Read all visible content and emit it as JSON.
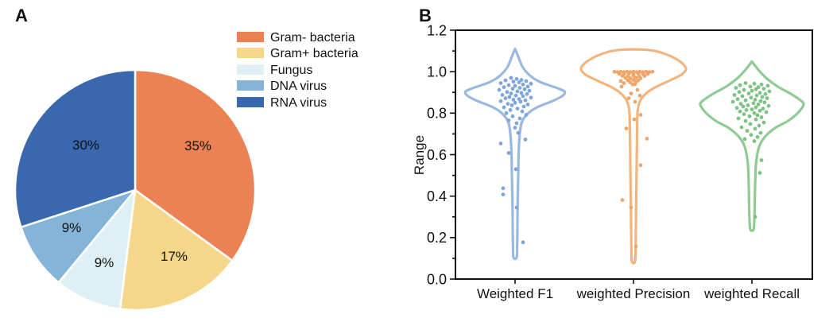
{
  "figure": {
    "panels": [
      {
        "label": "A"
      },
      {
        "label": "B"
      }
    ]
  },
  "chart_data": [
    {
      "type": "pie",
      "panel": "A",
      "labels": [
        "Gram- bacteria",
        "Gram+ bacteria",
        "Fungus",
        "DNA virus",
        "RNA virus"
      ],
      "values": [
        35,
        17,
        9,
        9,
        30
      ],
      "value_labels": [
        "35%",
        "17%",
        "9%",
        "9%",
        "30%"
      ],
      "colors": [
        "#EC8254",
        "#F5D78A",
        "#DFEFF6",
        "#84B4D8",
        "#3A68AE"
      ],
      "slice_border_color": "#FFFFFF",
      "start_angle": "top",
      "direction": "clockwise",
      "legend_position": "upper-right"
    },
    {
      "type": "violin",
      "panel": "B",
      "ylabel": "Range",
      "ylim": [
        0,
        1.2
      ],
      "ytick_labels": [
        "0.0",
        "0.2",
        "0.4",
        "0.6",
        "0.8",
        "1.0",
        "1.2"
      ],
      "minor_tick_step": 0.1,
      "categories": [
        "Weighted F1",
        "weighted Precision",
        "weighted Recall"
      ],
      "series": [
        {
          "name": "Weighted F1",
          "line_color": "#9BB8E0",
          "point_color": "#7EA6D8",
          "min": 0.1,
          "max": 1.1,
          "peak_density_at": 0.91,
          "profile": [
            [
              1.104,
              0.01
            ],
            [
              1.06,
              0.08
            ],
            [
              1.02,
              0.15
            ],
            [
              0.98,
              0.29
            ],
            [
              0.95,
              0.48
            ],
            [
              0.925,
              0.76
            ],
            [
              0.905,
              0.94
            ],
            [
              0.885,
              0.91
            ],
            [
              0.86,
              0.73
            ],
            [
              0.835,
              0.48
            ],
            [
              0.81,
              0.3
            ],
            [
              0.78,
              0.18
            ],
            [
              0.75,
              0.12
            ],
            [
              0.7,
              0.09
            ],
            [
              0.62,
              0.07
            ],
            [
              0.5,
              0.06
            ],
            [
              0.38,
              0.05
            ],
            [
              0.25,
              0.045
            ],
            [
              0.16,
              0.04
            ],
            [
              0.104,
              0.03
            ]
          ],
          "points": [
            [
              -5,
              0.97
            ],
            [
              2,
              0.965
            ],
            [
              8,
              0.96
            ],
            [
              -12,
              0.958
            ],
            [
              14,
              0.955
            ],
            [
              -2,
              0.952
            ],
            [
              5,
              0.948
            ],
            [
              -18,
              0.945
            ],
            [
              20,
              0.942
            ],
            [
              10,
              0.938
            ],
            [
              -8,
              0.935
            ],
            [
              0,
              0.932
            ],
            [
              16,
              0.928
            ],
            [
              -14,
              0.925
            ],
            [
              6,
              0.922
            ],
            [
              -3,
              0.918
            ],
            [
              12,
              0.915
            ],
            [
              -20,
              0.912
            ],
            [
              18,
              0.908
            ],
            [
              3,
              0.905
            ],
            [
              -10,
              0.902
            ],
            [
              8,
              0.898
            ],
            [
              -5,
              0.895
            ],
            [
              15,
              0.892
            ],
            [
              -16,
              0.888
            ],
            [
              1,
              0.885
            ],
            [
              10,
              0.882
            ],
            [
              -7,
              0.878
            ],
            [
              20,
              0.875
            ],
            [
              -12,
              0.872
            ],
            [
              5,
              0.868
            ],
            [
              -2,
              0.865
            ],
            [
              13,
              0.862
            ],
            [
              -18,
              0.858
            ],
            [
              7,
              0.855
            ],
            [
              0,
              0.85
            ],
            [
              -9,
              0.845
            ],
            [
              16,
              0.842
            ],
            [
              -4,
              0.838
            ],
            [
              11,
              0.832
            ],
            [
              -14,
              0.828
            ],
            [
              3,
              0.822
            ],
            [
              -6,
              0.815
            ],
            [
              9,
              0.808
            ],
            [
              -11,
              0.8
            ],
            [
              14,
              0.792
            ],
            [
              -3,
              0.785
            ],
            [
              6,
              0.775
            ],
            [
              -8,
              0.765
            ],
            [
              2,
              0.752
            ],
            [
              0,
              0.73
            ],
            [
              4,
              0.705
            ],
            [
              13,
              0.673
            ],
            [
              -18,
              0.654
            ],
            [
              -8,
              0.608
            ],
            [
              1,
              0.53
            ],
            [
              -15,
              0.438
            ],
            [
              -15,
              0.408
            ],
            [
              2,
              0.345
            ],
            [
              10,
              0.177
            ]
          ]
        },
        {
          "name": "weighted Precision",
          "line_color": "#F2B57F",
          "point_color": "#EFA668",
          "min": 0.09,
          "max": 1.1,
          "peak_density_at": 1.01,
          "profile": [
            [
              1.105,
              0.27
            ],
            [
              1.085,
              0.61
            ],
            [
              1.05,
              0.88
            ],
            [
              1.015,
              1.0
            ],
            [
              0.985,
              0.91
            ],
            [
              0.955,
              0.67
            ],
            [
              0.925,
              0.42
            ],
            [
              0.9,
              0.26
            ],
            [
              0.87,
              0.15
            ],
            [
              0.84,
              0.1
            ],
            [
              0.8,
              0.075
            ],
            [
              0.7,
              0.068
            ],
            [
              0.55,
              0.06
            ],
            [
              0.4,
              0.053
            ],
            [
              0.25,
              0.045
            ],
            [
              0.15,
              0.04
            ],
            [
              0.085,
              0.03
            ]
          ],
          "points": [
            [
              -24,
              1.0
            ],
            [
              -20,
              0.998
            ],
            [
              -16,
              1.0
            ],
            [
              -12,
              0.998
            ],
            [
              -8,
              1.0
            ],
            [
              -4,
              0.998
            ],
            [
              0,
              1.0
            ],
            [
              4,
              0.998
            ],
            [
              8,
              1.0
            ],
            [
              12,
              0.998
            ],
            [
              16,
              1.0
            ],
            [
              20,
              0.998
            ],
            [
              24,
              1.0
            ],
            [
              -18,
              0.99
            ],
            [
              -12,
              0.988
            ],
            [
              -6,
              0.99
            ],
            [
              0,
              0.988
            ],
            [
              6,
              0.99
            ],
            [
              12,
              0.988
            ],
            [
              18,
              0.99
            ],
            [
              -14,
              0.98
            ],
            [
              -7,
              0.978
            ],
            [
              0,
              0.98
            ],
            [
              7,
              0.978
            ],
            [
              14,
              0.98
            ],
            [
              -10,
              0.97
            ],
            [
              -4,
              0.968
            ],
            [
              3,
              0.97
            ],
            [
              9,
              0.968
            ],
            [
              -16,
              0.955
            ],
            [
              -7,
              0.958
            ],
            [
              0,
              0.96
            ],
            [
              6,
              0.958
            ],
            [
              -12,
              0.945
            ],
            [
              -4,
              0.948
            ],
            [
              3,
              0.95
            ],
            [
              -1,
              0.938
            ],
            [
              2,
              0.94
            ],
            [
              -15,
              0.928
            ],
            [
              5,
              0.912
            ],
            [
              -3,
              0.895
            ],
            [
              8,
              0.885
            ],
            [
              -6,
              0.872
            ],
            [
              2,
              0.855
            ],
            [
              1,
              0.77
            ],
            [
              9,
              0.792
            ],
            [
              -9,
              0.726
            ],
            [
              17,
              0.677
            ],
            [
              9,
              0.549
            ],
            [
              -14,
              0.381
            ],
            [
              -3,
              0.346
            ],
            [
              3,
              0.158
            ]
          ]
        },
        {
          "name": "weighted Recall",
          "line_color": "#90CB93",
          "point_color": "#7EC285",
          "min": 0.24,
          "max": 1.04,
          "peak_density_at": 0.85,
          "profile": [
            [
              1.045,
              0.01
            ],
            [
              1.01,
              0.12
            ],
            [
              0.97,
              0.27
            ],
            [
              0.93,
              0.48
            ],
            [
              0.895,
              0.73
            ],
            [
              0.865,
              0.91
            ],
            [
              0.845,
              0.985
            ],
            [
              0.82,
              0.94
            ],
            [
              0.79,
              0.83
            ],
            [
              0.76,
              0.67
            ],
            [
              0.73,
              0.45
            ],
            [
              0.7,
              0.3
            ],
            [
              0.67,
              0.2
            ],
            [
              0.64,
              0.14
            ],
            [
              0.6,
              0.1
            ],
            [
              0.55,
              0.076
            ],
            [
              0.45,
              0.06
            ],
            [
              0.35,
              0.053
            ],
            [
              0.28,
              0.045
            ],
            [
              0.238,
              0.03
            ]
          ],
          "points": [
            [
              -8,
              0.945
            ],
            [
              3,
              0.942
            ],
            [
              12,
              0.938
            ],
            [
              -15,
              0.935
            ],
            [
              20,
              0.932
            ],
            [
              -2,
              0.928
            ],
            [
              8,
              0.925
            ],
            [
              -20,
              0.922
            ],
            [
              15,
              0.918
            ],
            [
              5,
              0.915
            ],
            [
              -10,
              0.912
            ],
            [
              0,
              0.908
            ],
            [
              22,
              0.905
            ],
            [
              -16,
              0.902
            ],
            [
              10,
              0.898
            ],
            [
              -4,
              0.895
            ],
            [
              17,
              0.892
            ],
            [
              -22,
              0.888
            ],
            [
              6,
              0.885
            ],
            [
              -12,
              0.882
            ],
            [
              13,
              0.878
            ],
            [
              -1,
              0.875
            ],
            [
              19,
              0.872
            ],
            [
              -18,
              0.868
            ],
            [
              4,
              0.865
            ],
            [
              -8,
              0.862
            ],
            [
              11,
              0.858
            ],
            [
              -24,
              0.855
            ],
            [
              16,
              0.852
            ],
            [
              2,
              0.848
            ],
            [
              -14,
              0.845
            ],
            [
              8,
              0.842
            ],
            [
              -5,
              0.838
            ],
            [
              21,
              0.835
            ],
            [
              -11,
              0.832
            ],
            [
              5,
              0.828
            ],
            [
              -19,
              0.825
            ],
            [
              14,
              0.822
            ],
            [
              0,
              0.818
            ],
            [
              -7,
              0.815
            ],
            [
              10,
              0.812
            ],
            [
              -15,
              0.808
            ],
            [
              18,
              0.805
            ],
            [
              3,
              0.8
            ],
            [
              -10,
              0.795
            ],
            [
              7,
              0.79
            ],
            [
              -3,
              0.785
            ],
            [
              12,
              0.78
            ],
            [
              -17,
              0.775
            ],
            [
              5,
              0.77
            ],
            [
              -8,
              0.762
            ],
            [
              15,
              0.755
            ],
            [
              -2,
              0.748
            ],
            [
              9,
              0.74
            ],
            [
              -13,
              0.732
            ],
            [
              4,
              0.725
            ],
            [
              -6,
              0.715
            ],
            [
              11,
              0.705
            ],
            [
              -1,
              0.695
            ],
            [
              7,
              0.685
            ],
            [
              -9,
              0.675
            ],
            [
              3,
              0.665
            ],
            [
              12,
              0.573
            ],
            [
              10,
              0.512
            ],
            [
              4,
              0.3
            ]
          ]
        }
      ]
    }
  ]
}
